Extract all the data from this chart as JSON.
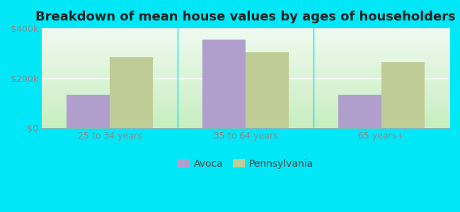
{
  "title": "Breakdown of mean house values by ages of householders",
  "categories": [
    "25 to 34 years",
    "35 to 64 years",
    "65 years+"
  ],
  "avoca_values": [
    135000,
    355000,
    135000
  ],
  "pennsylvania_values": [
    285000,
    305000,
    265000
  ],
  "avoca_color": "#b09fcc",
  "pennsylvania_color": "#c0cc96",
  "background_outer": "#00e8f8",
  "ylim": [
    0,
    400000
  ],
  "yticks": [
    0,
    200000,
    400000
  ],
  "ytick_labels": [
    "$0",
    "$200k",
    "$400k"
  ],
  "legend_labels": [
    "Avoca",
    "Pennsylvania"
  ],
  "bar_width": 0.32,
  "title_fontsize": 13,
  "tick_fontsize": 9,
  "legend_fontsize": 10,
  "bg_top_color": "#f0faf0",
  "bg_bottom_color": "#c8eec0"
}
